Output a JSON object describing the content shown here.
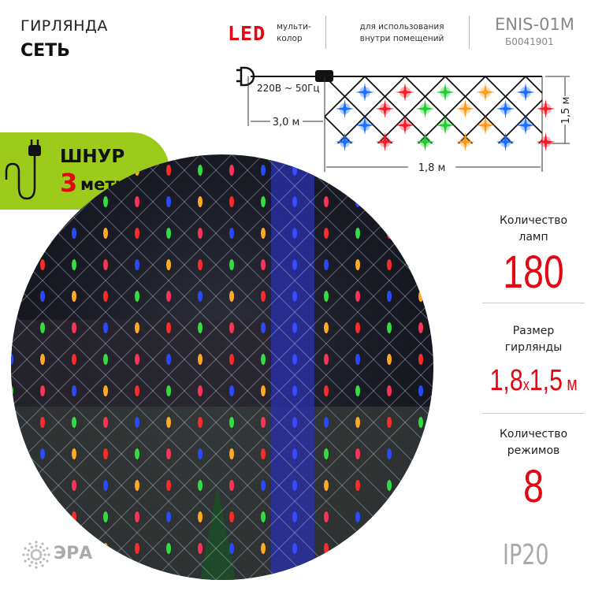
{
  "header": {
    "title_line1": "ГИРЛЯНДА",
    "title_line2": "СЕТЬ",
    "led_label": "LED",
    "led_desc_line1": "мульти-",
    "led_desc_line2": "колор",
    "usage_line1": "для использования",
    "usage_line2": "внутри помещений",
    "model": "ENIS-01M",
    "article": "Б0041901"
  },
  "diagram": {
    "voltage": "220В ~ 50Гц",
    "cord_length": "3,0 м",
    "width": "1,8 м",
    "height": "1,5 м",
    "lamp_colors": {
      "blue": "#1e6fff",
      "red": "#ff1a2a",
      "green": "#22cc33",
      "orange": "#ff9a1a"
    }
  },
  "badge": {
    "line1": "ШНУР",
    "number": "3",
    "line2": "метра",
    "color": "#9ccb1c"
  },
  "specs": [
    {
      "label_line1": "Количество",
      "label_line2": "ламп",
      "value": "180"
    },
    {
      "label_line1": "Размер",
      "label_line2": "гирлянды",
      "value_a": "1,8",
      "value_x": "x",
      "value_b": "1,5",
      "value_unit": "м"
    },
    {
      "label_line1": "Количество",
      "label_line2": "режимов",
      "value": "8"
    }
  ],
  "footer": {
    "brand": "ЭРА",
    "rating": "IP20"
  },
  "accent": "#e30613"
}
